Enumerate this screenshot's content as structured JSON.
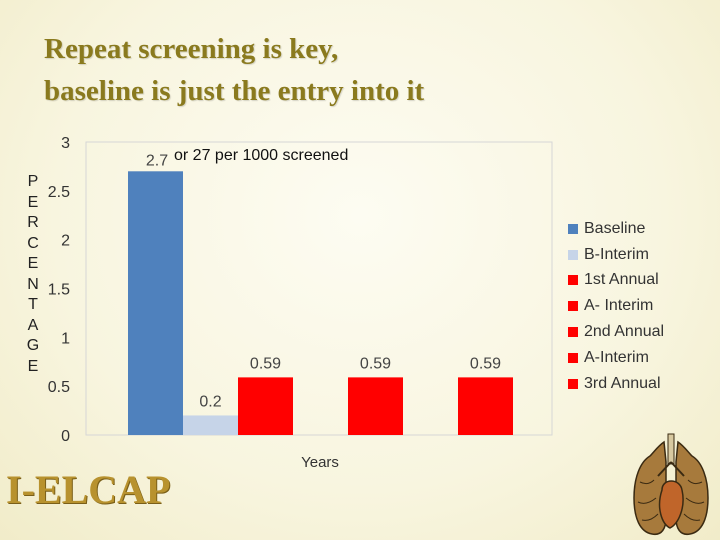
{
  "title": {
    "line1": "Repeat screening is key,",
    "line2": "baseline is just the entry into it"
  },
  "logo_text": "I-ELCAP",
  "colors": {
    "title": "#8a7a1e",
    "baseline": "#4f81bd",
    "b_interim": "#c6d4e8",
    "red": "#ff0000"
  },
  "chart_data": {
    "type": "bar",
    "title": "",
    "xlabel": "Years",
    "ylabel": "PERCENTAGE",
    "ylabel_letters": [
      "P",
      "E",
      "R",
      "C",
      "E",
      "N",
      "T",
      "A",
      "G",
      "E"
    ],
    "ylim": [
      0,
      3
    ],
    "yticks": [
      "0",
      "0.5",
      "1",
      "1.5",
      "2",
      "2.5",
      "3"
    ],
    "grid": false,
    "legend_position": "right",
    "series": [
      {
        "name": "Baseline",
        "value": 2.7,
        "label": "2.7",
        "color": "#4f81bd"
      },
      {
        "name": "B-Interim",
        "value": 0.2,
        "label": "0.2",
        "color": "#c6d4e8"
      },
      {
        "name": "1st Annual",
        "value": 0.59,
        "label": "0.59",
        "color": "#ff0000"
      },
      {
        "name": "A- Interim",
        "value": 0,
        "label": "",
        "color": "#ff0000"
      },
      {
        "name": "2nd Annual",
        "value": 0.59,
        "label": "0.59",
        "color": "#ff0000"
      },
      {
        "name": "A-Interim",
        "value": 0,
        "label": "",
        "color": "#ff0000"
      },
      {
        "name": "3rd Annual",
        "value": 0.59,
        "label": "0.59",
        "color": "#ff0000"
      }
    ],
    "annotation": "or 27 per 1000 screened"
  }
}
